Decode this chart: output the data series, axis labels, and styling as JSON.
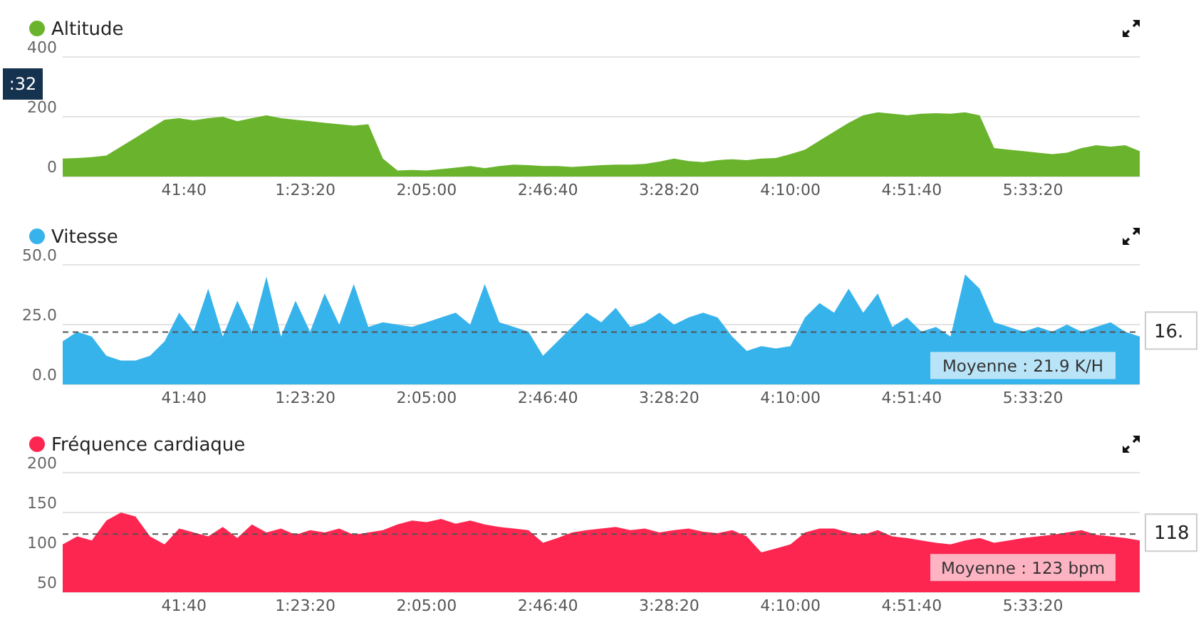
{
  "chart_data": [
    {
      "type": "area",
      "x": [
        0,
        300,
        600,
        900,
        1200,
        1500,
        1800,
        2100,
        2400,
        2700,
        3000,
        3300,
        3600,
        3900,
        4200,
        4500,
        4800,
        5100,
        5400,
        5700,
        6000,
        6300,
        6600,
        6900,
        7200,
        7500,
        7800,
        8100,
        8400,
        8700,
        9000,
        9300,
        9600,
        9900,
        10200,
        10500,
        10800,
        11100,
        11400,
        11700,
        12000,
        12300,
        12600,
        12900,
        13200,
        13500,
        13800,
        14100,
        14400,
        14700,
        15000,
        15300,
        15600,
        15900,
        16200,
        16500,
        16800,
        17100,
        17400,
        17700,
        18000,
        18300,
        18600,
        18900,
        19200,
        19500,
        19800,
        20100,
        20400,
        20700,
        21000,
        21300,
        21600,
        21900,
        22200
      ],
      "series": [
        {
          "name": "Altitude",
          "color": "#6ab42d",
          "values": [
            60,
            62,
            65,
            70,
            100,
            130,
            160,
            190,
            195,
            188,
            195,
            200,
            185,
            195,
            205,
            195,
            190,
            185,
            180,
            175,
            170,
            175,
            60,
            20,
            22,
            20,
            25,
            30,
            35,
            28,
            35,
            40,
            38,
            35,
            35,
            32,
            35,
            38,
            40,
            40,
            42,
            50,
            60,
            52,
            48,
            55,
            58,
            55,
            60,
            62,
            75,
            90,
            120,
            150,
            180,
            205,
            215,
            210,
            205,
            210,
            212,
            210,
            215,
            205,
            95,
            90,
            85,
            80,
            75,
            80,
            95,
            105,
            100,
            105,
            85
          ]
        }
      ],
      "xlim": [
        0,
        22200
      ],
      "xticks": [
        {
          "value": 2500,
          "label": "41:40"
        },
        {
          "value": 5000,
          "label": "1:23:20"
        },
        {
          "value": 7500,
          "label": "2:05:00"
        },
        {
          "value": 10000,
          "label": "2:46:40"
        },
        {
          "value": 12500,
          "label": "3:28:20"
        },
        {
          "value": 15000,
          "label": "4:10:00"
        },
        {
          "value": 17500,
          "label": "4:51:40"
        },
        {
          "value": 20000,
          "label": "5:33:20"
        }
      ],
      "ylim": [
        0,
        400
      ],
      "yticks": [
        0,
        200,
        400
      ],
      "grid": "y",
      "legend": "top left",
      "annotations": [
        ":32"
      ]
    },
    {
      "type": "area",
      "x": [
        0,
        300,
        600,
        900,
        1200,
        1500,
        1800,
        2100,
        2400,
        2700,
        3000,
        3300,
        3600,
        3900,
        4200,
        4500,
        4800,
        5100,
        5400,
        5700,
        6000,
        6300,
        6600,
        6900,
        7200,
        7500,
        7800,
        8100,
        8400,
        8700,
        9000,
        9300,
        9600,
        9900,
        10200,
        10500,
        10800,
        11100,
        11400,
        11700,
        12000,
        12300,
        12600,
        12900,
        13200,
        13500,
        13800,
        14100,
        14400,
        14700,
        15000,
        15300,
        15600,
        15900,
        16200,
        16500,
        16800,
        17100,
        17400,
        17700,
        18000,
        18300,
        18600,
        18900,
        19200,
        19500,
        19800,
        20100,
        20400,
        20700,
        21000,
        21300,
        21600,
        21900,
        22200
      ],
      "series": [
        {
          "name": "Vitesse",
          "color": "#37b3ec",
          "values": [
            18,
            22,
            20,
            12,
            10,
            10,
            12,
            18,
            30,
            22,
            40,
            20,
            35,
            22,
            45,
            20,
            35,
            22,
            38,
            25,
            42,
            24,
            26,
            25,
            24,
            26,
            28,
            30,
            25,
            42,
            26,
            24,
            22,
            12,
            18,
            24,
            30,
            26,
            32,
            24,
            26,
            30,
            25,
            28,
            30,
            28,
            20,
            14,
            16,
            15,
            16,
            28,
            34,
            30,
            40,
            30,
            38,
            24,
            28,
            22,
            24,
            20,
            46,
            40,
            26,
            24,
            22,
            24,
            22,
            25,
            22,
            24,
            26,
            22,
            20
          ]
        }
      ],
      "xlim": [
        0,
        22200
      ],
      "xticks": [
        {
          "value": 2500,
          "label": "41:40"
        },
        {
          "value": 5000,
          "label": "1:23:20"
        },
        {
          "value": 7500,
          "label": "2:05:00"
        },
        {
          "value": 10000,
          "label": "2:46:40"
        },
        {
          "value": 12500,
          "label": "3:28:20"
        },
        {
          "value": 15000,
          "label": "4:10:00"
        },
        {
          "value": 17500,
          "label": "4:51:40"
        },
        {
          "value": 20000,
          "label": "5:33:20"
        }
      ],
      "ylim": [
        0,
        50
      ],
      "yticks": [
        {
          "value": 0,
          "label": "0.0"
        },
        {
          "value": 25,
          "label": "25.0"
        },
        {
          "value": 50,
          "label": "50.0"
        }
      ],
      "grid": "y",
      "legend": "top left",
      "ref_lines": [
        {
          "axis": "y",
          "value": 21.9,
          "label": "Moyenne : 21.9 K/H",
          "line_style": "dashed"
        }
      ],
      "annotations": [
        "16."
      ]
    },
    {
      "type": "area",
      "x": [
        0,
        300,
        600,
        900,
        1200,
        1500,
        1800,
        2100,
        2400,
        2700,
        3000,
        3300,
        3600,
        3900,
        4200,
        4500,
        4800,
        5100,
        5400,
        5700,
        6000,
        6300,
        6600,
        6900,
        7200,
        7500,
        7800,
        8100,
        8400,
        8700,
        9000,
        9300,
        9600,
        9900,
        10200,
        10500,
        10800,
        11100,
        11400,
        11700,
        12000,
        12300,
        12600,
        12900,
        13200,
        13500,
        13800,
        14100,
        14400,
        14700,
        15000,
        15300,
        15600,
        15900,
        16200,
        16500,
        16800,
        17100,
        17400,
        17700,
        18000,
        18300,
        18600,
        18900,
        19200,
        19500,
        19800,
        20100,
        20400,
        20700,
        21000,
        21300,
        21600,
        21900,
        22200
      ],
      "series": [
        {
          "name": "Fréquence cardiaque",
          "color": "#fd2650",
          "values": [
            110,
            120,
            115,
            140,
            150,
            145,
            120,
            110,
            130,
            125,
            120,
            132,
            118,
            135,
            125,
            130,
            122,
            128,
            125,
            130,
            122,
            125,
            128,
            135,
            140,
            138,
            142,
            136,
            140,
            135,
            132,
            130,
            128,
            112,
            118,
            125,
            128,
            130,
            132,
            128,
            130,
            125,
            128,
            130,
            126,
            124,
            128,
            120,
            100,
            105,
            110,
            125,
            130,
            130,
            125,
            122,
            128,
            120,
            118,
            115,
            112,
            110,
            115,
            118,
            112,
            115,
            118,
            120,
            122,
            125,
            128,
            122,
            120,
            118,
            115
          ]
        }
      ],
      "xlim": [
        0,
        22200
      ],
      "xticks": [
        {
          "value": 2500,
          "label": "41:40"
        },
        {
          "value": 5000,
          "label": "1:23:20"
        },
        {
          "value": 7500,
          "label": "2:05:00"
        },
        {
          "value": 10000,
          "label": "2:46:40"
        },
        {
          "value": 12500,
          "label": "3:28:20"
        },
        {
          "value": 15000,
          "label": "4:10:00"
        },
        {
          "value": 17500,
          "label": "4:51:40"
        },
        {
          "value": 20000,
          "label": "5:33:20"
        }
      ],
      "ylim": [
        50,
        200
      ],
      "yticks": [
        50,
        100,
        150,
        200
      ],
      "grid": "y",
      "legend": "top left",
      "ref_lines": [
        {
          "axis": "y",
          "value": 123,
          "label": "Moyenne : 123 bpm",
          "line_style": "dashed"
        }
      ],
      "annotations": [
        "118"
      ]
    }
  ]
}
